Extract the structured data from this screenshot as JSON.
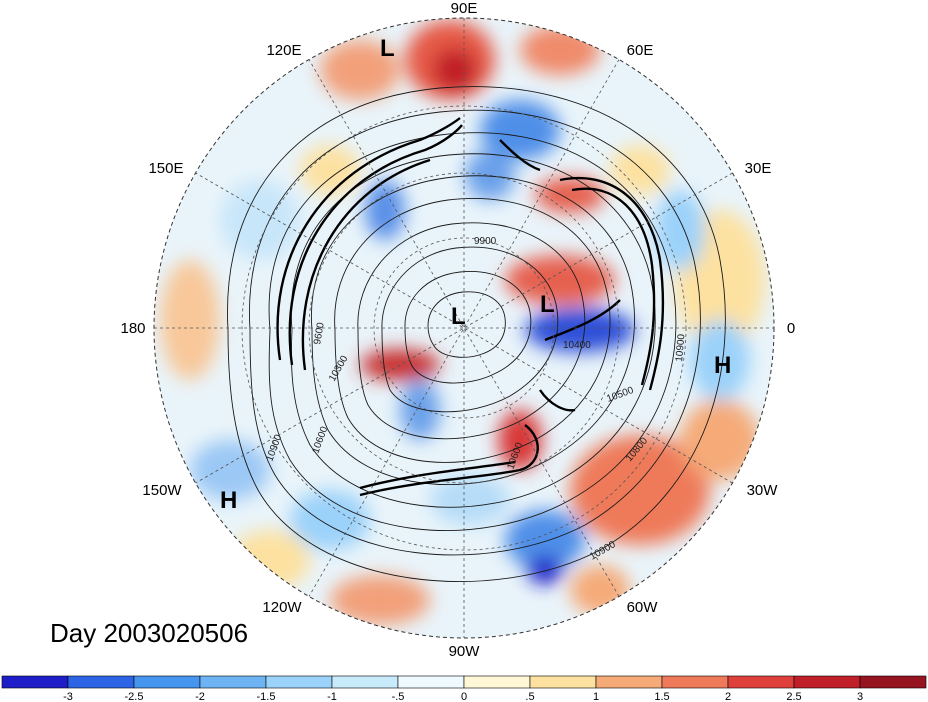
{
  "title": "Day 2003020506",
  "longitude_labels": [
    {
      "text": "90E",
      "lon": 90
    },
    {
      "text": "60E",
      "lon": 60
    },
    {
      "text": "30E",
      "lon": 30
    },
    {
      "text": "0",
      "lon": 0
    },
    {
      "text": "30W",
      "lon": -30
    },
    {
      "text": "60W",
      "lon": -60
    },
    {
      "text": "90W",
      "lon": -90
    },
    {
      "text": "120W",
      "lon": -120
    },
    {
      "text": "150W",
      "lon": -150
    },
    {
      "text": "180",
      "lon": 180
    },
    {
      "text": "150E",
      "lon": 150
    },
    {
      "text": "120E",
      "lon": 120
    }
  ],
  "pressure_centers": [
    {
      "type": "L",
      "lon": 110,
      "lat": 18
    },
    {
      "type": "L",
      "lon": 180,
      "lat": 88
    },
    {
      "type": "L",
      "lon": 10,
      "lat": 70
    },
    {
      "type": "H",
      "lon": -10,
      "lat": 10
    },
    {
      "type": "H",
      "lon": -145,
      "lat": 10
    }
  ],
  "contour_labels": [
    "9900",
    "10400",
    "10300",
    "10600",
    "10500",
    "10800",
    "10900",
    "10600",
    "10900",
    "9600",
    "10900"
  ],
  "colorbar": {
    "ticks": [
      "-3",
      "-2.5",
      "-2",
      "-1.5",
      "-1",
      "-.5",
      "0",
      ".5",
      "1",
      "1.5",
      "2",
      "2.5",
      "3"
    ],
    "colors": [
      "#1e1ec8",
      "#2d64e6",
      "#4696f0",
      "#6eb4f5",
      "#9bd2fa",
      "#c8ebfc",
      "#eefaff",
      "#fff7d6",
      "#fde1a0",
      "#f5aa78",
      "#ee7a5a",
      "#e0403c",
      "#c01e28",
      "#961420"
    ]
  }
}
